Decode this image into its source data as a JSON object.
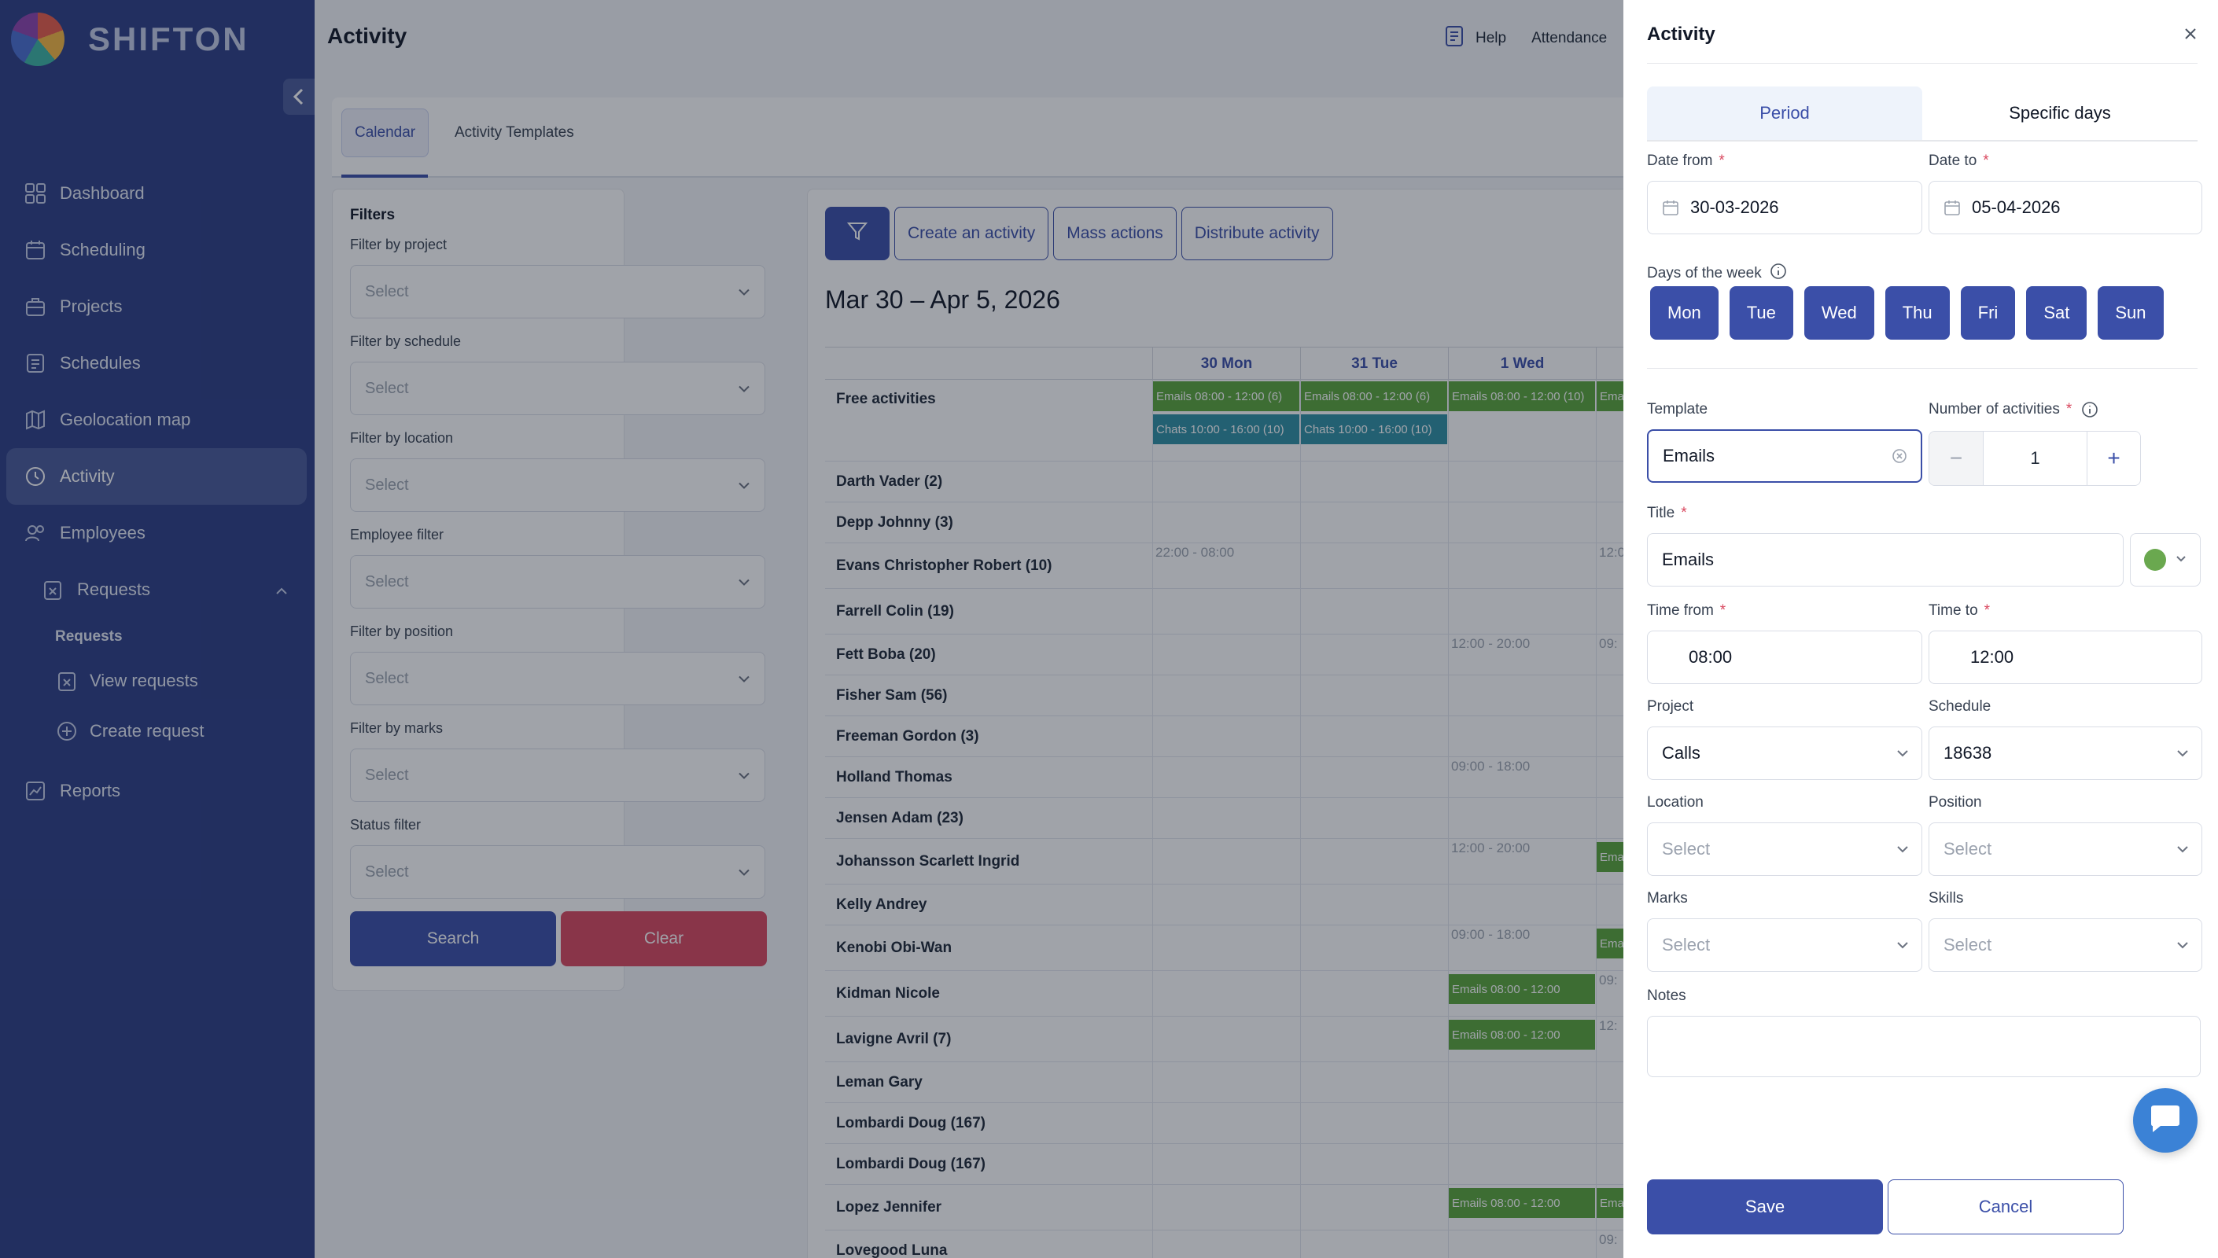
{
  "app": {
    "logo_text": "SHIFTON"
  },
  "sidebar": {
    "items": [
      {
        "label": "Dashboard",
        "icon": "dashboard-icon"
      },
      {
        "label": "Scheduling",
        "icon": "calendar-icon"
      },
      {
        "label": "Projects",
        "icon": "briefcase-icon"
      },
      {
        "label": "Schedules",
        "icon": "schedule-icon"
      },
      {
        "label": "Geolocation map",
        "icon": "map-icon"
      },
      {
        "label": "Activity",
        "icon": "clock-icon",
        "active": true
      },
      {
        "label": "Employees",
        "icon": "users-icon"
      },
      {
        "label": "Requests",
        "icon": "requests-icon",
        "expanded": true
      },
      {
        "label": "Reports",
        "icon": "chart-icon"
      }
    ],
    "requests_group_title": "Requests",
    "requests_sub": [
      {
        "label": "View requests",
        "icon": "view-requests-icon"
      },
      {
        "label": "Create request",
        "icon": "plus-circle-icon"
      }
    ]
  },
  "header": {
    "title": "Activity",
    "help": "Help",
    "attendance": "Attendance"
  },
  "tabs": {
    "calendar": "Calendar",
    "templates": "Activity Templates"
  },
  "filters": {
    "title": "Filters",
    "fields": [
      {
        "label": "Filter by project",
        "placeholder": "Select"
      },
      {
        "label": "Filter by schedule",
        "placeholder": "Select"
      },
      {
        "label": "Filter by location",
        "placeholder": "Select"
      },
      {
        "label": "Employee filter",
        "placeholder": "Select"
      },
      {
        "label": "Filter by position",
        "placeholder": "Select"
      },
      {
        "label": "Filter by marks",
        "placeholder": "Select"
      },
      {
        "label": "Status filter",
        "placeholder": "Select"
      }
    ],
    "search_label": "Search",
    "clear_label": "Clear"
  },
  "calendar": {
    "toolbar": {
      "create": "Create an activity",
      "mass": "Mass actions",
      "distribute": "Distribute activity"
    },
    "range_title": "Mar 30 – Apr 5, 2026",
    "days": [
      "30 Mon",
      "31 Tue",
      "1 Wed"
    ],
    "free_activities_label": "Free activities",
    "free_events": [
      {
        "text": "Emails 08:00 - 12:00 (6)",
        "color": "green"
      },
      {
        "text": "Emails 08:00 - 12:00 (6)",
        "color": "green"
      },
      {
        "text": "Emails 08:00 - 12:00 (10)",
        "color": "green"
      },
      {
        "text": "Ema",
        "color": "green"
      },
      {
        "text": "Chats 10:00 - 16:00 (10)",
        "color": "teal"
      },
      {
        "text": "Chats 10:00 - 16:00 (10)",
        "color": "teal"
      }
    ],
    "employees": [
      {
        "name": "Darth Vader (2)"
      },
      {
        "name": "Depp Johnny (3)"
      },
      {
        "name": "Evans Christopher Robert (10)",
        "shifts": [
          {
            "day": 0,
            "text": "22:00 - 08:00"
          },
          {
            "day": 3,
            "text": "12:0"
          }
        ]
      },
      {
        "name": "Farrell Colin (19)"
      },
      {
        "name": "Fett Boba (20)",
        "shifts": [
          {
            "day": 2,
            "text": "12:00 - 20:00"
          },
          {
            "day": 3,
            "text": "09:"
          }
        ]
      },
      {
        "name": "Fisher Sam (56)"
      },
      {
        "name": "Freeman Gordon (3)"
      },
      {
        "name": "Holland Thomas",
        "shifts": [
          {
            "day": 2,
            "text": "09:00 - 18:00"
          }
        ]
      },
      {
        "name": "Jensen Adam (23)"
      },
      {
        "name": "Johansson Scarlett Ingrid",
        "shifts": [
          {
            "day": 2,
            "text": "12:00 - 20:00"
          }
        ],
        "events": [
          {
            "day": 3,
            "text": "Ema"
          }
        ]
      },
      {
        "name": "Kelly Andrey"
      },
      {
        "name": "Kenobi Obi-Wan",
        "shifts": [
          {
            "day": 2,
            "text": "09:00 - 18:00"
          }
        ],
        "events": [
          {
            "day": 3,
            "text": "Ema"
          }
        ]
      },
      {
        "name": "Kidman Nicole",
        "shifts": [
          {
            "day": 3,
            "text": "09:"
          }
        ],
        "events": [
          {
            "day": 2,
            "text": "Emails 08:00 - 12:00"
          }
        ]
      },
      {
        "name": "Lavigne Avril (7)",
        "shifts": [
          {
            "day": 3,
            "text": "12:"
          }
        ],
        "events": [
          {
            "day": 2,
            "text": "Emails 08:00 - 12:00"
          }
        ]
      },
      {
        "name": "Leman Gary"
      },
      {
        "name": "Lombardi Doug (167)"
      },
      {
        "name": "Lombardi Doug (167)"
      },
      {
        "name": "Lopez Jennifer",
        "events": [
          {
            "day": 2,
            "text": "Emails 08:00 - 12:00"
          },
          {
            "day": 3,
            "text": "Ema"
          }
        ]
      },
      {
        "name": "Lovegood Luna",
        "shifts": [
          {
            "day": 3,
            "text": "09:"
          }
        ]
      }
    ]
  },
  "drawer": {
    "title": "Activity",
    "segments": [
      "Period",
      "Specific days"
    ],
    "date_from_label": "Date from",
    "date_from": "30-03-2026",
    "date_to_label": "Date to",
    "date_to": "05-04-2026",
    "days_label": "Days of the week",
    "week_days": [
      "Mon",
      "Tue",
      "Wed",
      "Thu",
      "Fri",
      "Sat",
      "Sun"
    ],
    "template_label": "Template",
    "template_value": "Emails",
    "number_label": "Number of activities",
    "number_value": "1",
    "title_label": "Title",
    "title_value": "Emails",
    "color": "#6aa84f",
    "time_from_label": "Time from",
    "time_from": "08:00",
    "time_to_label": "Time to",
    "time_to": "12:00",
    "project_label": "Project",
    "project_value": "Calls",
    "schedule_label": "Schedule",
    "schedule_value": "18638",
    "location_label": "Location",
    "location_placeholder": "Select",
    "position_label": "Position",
    "position_placeholder": "Select",
    "marks_label": "Marks",
    "marks_placeholder": "Select",
    "skills_label": "Skills",
    "skills_placeholder": "Select",
    "notes_label": "Notes",
    "save_label": "Save",
    "cancel_label": "Cancel"
  }
}
